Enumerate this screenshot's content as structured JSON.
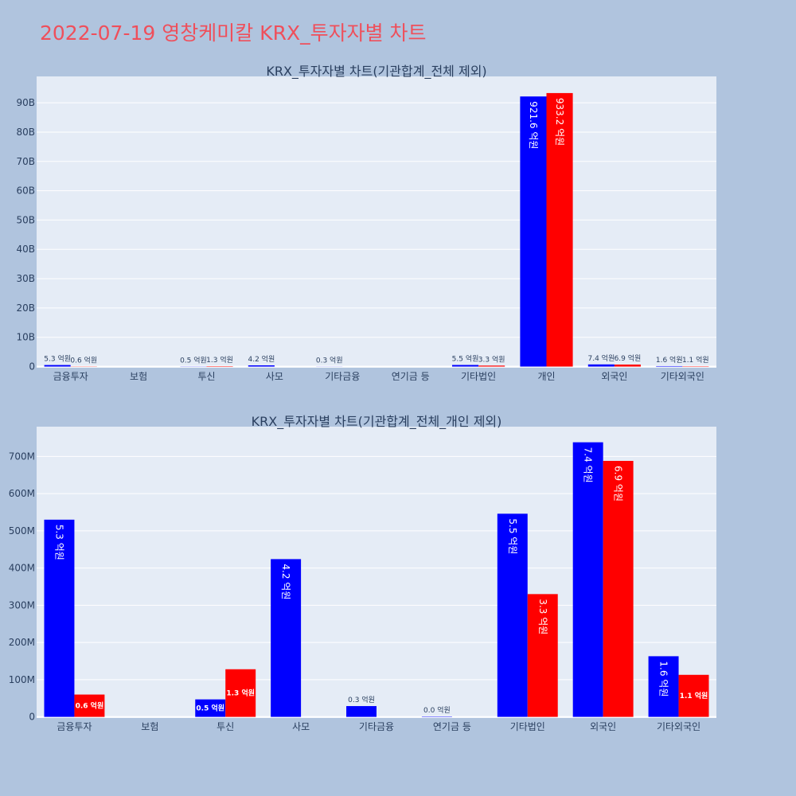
{
  "page_title": "2022-07-19 영창케미칼 KRX_투자자별 차트",
  "colors": {
    "background": "#b0c4de",
    "plot_bg": "#e5ecf6",
    "title": "#ef4f5b",
    "buy": "#0000ff",
    "sell": "#ff0000"
  },
  "chart_data": [
    {
      "type": "bar",
      "title": "KRX_투자자별 차트(기관합계_전체 제외)",
      "categories": [
        "금융투자",
        "보험",
        "투신",
        "사모",
        "기타금융",
        "연기금 등",
        "기타법인",
        "개인",
        "외국인",
        "기타외국인"
      ],
      "series": [
        {
          "color": "#0000ff",
          "values": [
            530000000,
            0,
            50000000,
            420000000,
            30000000,
            0,
            550000000,
            92160000000,
            740000000,
            160000000
          ],
          "labels": [
            "5.3 억원",
            "",
            "0.5 억원",
            "4.2 억원",
            "0.3 억원",
            "",
            "5.5 억원",
            "921.6 억원",
            "7.4 억원",
            "1.6 억원"
          ]
        },
        {
          "color": "#ff0000",
          "values": [
            60000000,
            0,
            130000000,
            0,
            0,
            0,
            330000000,
            93320000000,
            690000000,
            110000000
          ],
          "labels": [
            "0.6 억원",
            "",
            "1.3 억원",
            "",
            "",
            "",
            "3.3 억원",
            "933.2 억원",
            "6.9 억원",
            "1.1 억원"
          ]
        }
      ],
      "yticks": [
        {
          "value": 0,
          "label": "0"
        },
        {
          "value": 10000000000,
          "label": "10B"
        },
        {
          "value": 20000000000,
          "label": "20B"
        },
        {
          "value": 30000000000,
          "label": "30B"
        },
        {
          "value": 40000000000,
          "label": "40B"
        },
        {
          "value": 50000000000,
          "label": "50B"
        },
        {
          "value": 60000000000,
          "label": "60B"
        },
        {
          "value": 70000000000,
          "label": "70B"
        },
        {
          "value": 80000000000,
          "label": "80B"
        },
        {
          "value": 90000000000,
          "label": "90B"
        }
      ],
      "ylim": [
        -400000000,
        99000000000
      ],
      "grid": true
    },
    {
      "type": "bar",
      "title": "KRX_투자자별 차트(기관합계_전체_개인 제외)",
      "categories": [
        "금융투자",
        "보험",
        "투신",
        "사모",
        "기타금융",
        "연기금 등",
        "기타법인",
        "외국인",
        "기타외국인"
      ],
      "series": [
        {
          "color": "#0000ff",
          "values": [
            530000000,
            0,
            47000000,
            424000000,
            29000000,
            1000000,
            546000000,
            738000000,
            163000000
          ],
          "labels": [
            "5.3 억원",
            "",
            "0.5 억원",
            "4.2 억원",
            "0.3 억원",
            "0.0 억원",
            "5.5 억원",
            "7.4 억원",
            "1.6 억원"
          ]
        },
        {
          "color": "#ff0000",
          "values": [
            60000000,
            0,
            128000000,
            0,
            0,
            0,
            330000000,
            688000000,
            113000000
          ],
          "labels": [
            "0.6 억원",
            "",
            "1.3 억원",
            "",
            "",
            "",
            "3.3 억원",
            "6.9 억원",
            "1.1 억원"
          ]
        }
      ],
      "yticks": [
        {
          "value": 0,
          "label": "0"
        },
        {
          "value": 100000000,
          "label": "100M"
        },
        {
          "value": 200000000,
          "label": "200M"
        },
        {
          "value": 300000000,
          "label": "300M"
        },
        {
          "value": 400000000,
          "label": "400M"
        },
        {
          "value": 500000000,
          "label": "500M"
        },
        {
          "value": 600000000,
          "label": "600M"
        },
        {
          "value": 700000000,
          "label": "700M"
        }
      ],
      "ylim": [
        -3000000,
        780000000
      ],
      "grid": true
    }
  ]
}
